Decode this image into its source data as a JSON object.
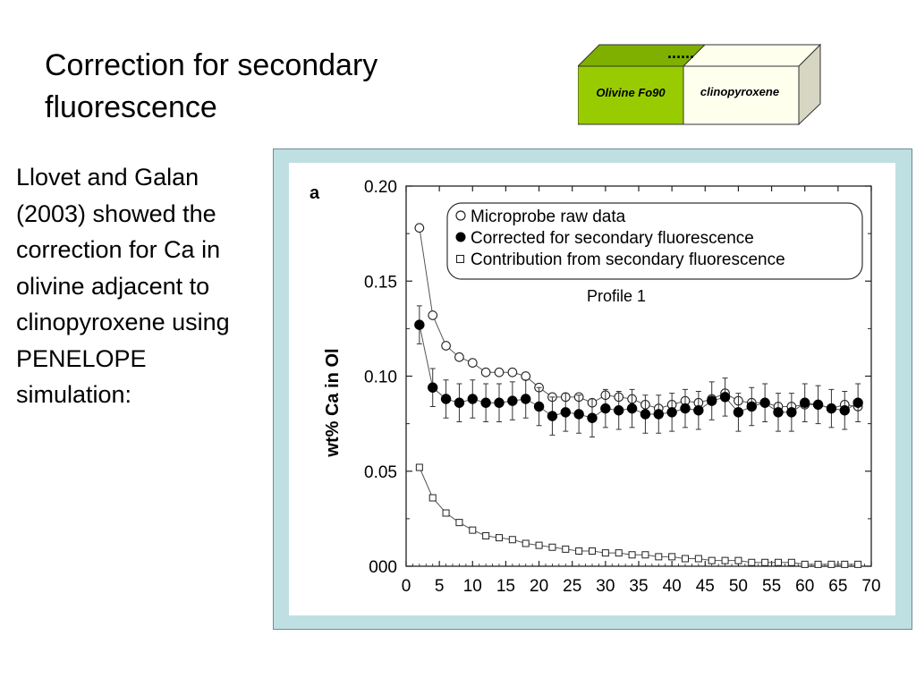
{
  "slide": {
    "title": "Correction for secondary fluorescence",
    "body": "Llovet and Galan (2003) showed the correction for Ca in olivine adjacent to clinopyroxene using PENELOPE simulation:"
  },
  "diagram": {
    "left_label": "Olivine Fo90",
    "right_label": "clinopyroxene",
    "dots": "......",
    "colors": {
      "olivine": "#99cc00",
      "olivine_top": "#7fb000",
      "cpx": "#ffffee",
      "cpx_side": "#d6d6c2"
    }
  },
  "chart_data": {
    "type": "scatter",
    "panel_label": "a",
    "subtitle": "Profile 1",
    "ylabel": "wt% Ca in Ol",
    "xlabel": "",
    "xlim": [
      0,
      70
    ],
    "ylim": [
      0,
      0.2
    ],
    "xticks": [
      "0",
      "5",
      "10",
      "15",
      "20",
      "25",
      "30",
      "35",
      "40",
      "45",
      "50",
      "55",
      "60",
      "65",
      "70"
    ],
    "yticks": [
      "000",
      "0.05",
      "0.10",
      "0.15",
      "0.20"
    ],
    "legend_position": "top-right",
    "series": [
      {
        "name": "Microprobe raw data",
        "marker": "open-circle",
        "x": [
          2,
          4,
          6,
          8,
          10,
          12,
          14,
          16,
          18,
          20,
          22,
          24,
          26,
          28,
          30,
          32,
          34,
          36,
          38,
          40,
          42,
          44,
          46,
          48,
          50,
          52,
          54,
          56,
          58,
          60,
          62,
          64,
          66,
          68
        ],
        "y": [
          0.178,
          0.132,
          0.116,
          0.11,
          0.107,
          0.102,
          0.102,
          0.102,
          0.1,
          0.094,
          0.089,
          0.089,
          0.089,
          0.086,
          0.09,
          0.089,
          0.088,
          0.085,
          0.083,
          0.085,
          0.087,
          0.086,
          0.088,
          0.091,
          0.087,
          0.086,
          0.086,
          0.084,
          0.084,
          0.085,
          0.085,
          0.083,
          0.085,
          0.084
        ]
      },
      {
        "name": "Corrected for secondary fluorescence",
        "marker": "filled-circle",
        "x": [
          2,
          4,
          6,
          8,
          10,
          12,
          14,
          16,
          18,
          20,
          22,
          24,
          26,
          28,
          30,
          32,
          34,
          36,
          38,
          40,
          42,
          44,
          46,
          48,
          50,
          52,
          54,
          56,
          58,
          60,
          62,
          64,
          66,
          68
        ],
        "y": [
          0.127,
          0.094,
          0.088,
          0.086,
          0.088,
          0.086,
          0.086,
          0.087,
          0.088,
          0.084,
          0.079,
          0.081,
          0.08,
          0.078,
          0.083,
          0.082,
          0.083,
          0.08,
          0.08,
          0.081,
          0.083,
          0.082,
          0.087,
          0.089,
          0.081,
          0.084,
          0.086,
          0.081,
          0.081,
          0.086,
          0.085,
          0.083,
          0.082,
          0.086
        ],
        "error": [
          0.01,
          0.01,
          0.01,
          0.01,
          0.01,
          0.01,
          0.01,
          0.01,
          0.01,
          0.01,
          0.01,
          0.01,
          0.01,
          0.01,
          0.01,
          0.01,
          0.01,
          0.01,
          0.01,
          0.01,
          0.01,
          0.01,
          0.01,
          0.01,
          0.01,
          0.01,
          0.01,
          0.01,
          0.01,
          0.01,
          0.01,
          0.01,
          0.01,
          0.01
        ]
      },
      {
        "name": "Contribution from secondary fluorescence",
        "marker": "open-square",
        "x": [
          2,
          4,
          6,
          8,
          10,
          12,
          14,
          16,
          18,
          20,
          22,
          24,
          26,
          28,
          30,
          32,
          34,
          36,
          38,
          40,
          42,
          44,
          46,
          48,
          50,
          52,
          54,
          56,
          58,
          60,
          62,
          64,
          66,
          68
        ],
        "y": [
          0.052,
          0.036,
          0.028,
          0.023,
          0.019,
          0.016,
          0.015,
          0.014,
          0.012,
          0.011,
          0.01,
          0.009,
          0.008,
          0.008,
          0.007,
          0.007,
          0.006,
          0.006,
          0.005,
          0.005,
          0.004,
          0.004,
          0.003,
          0.003,
          0.003,
          0.002,
          0.002,
          0.002,
          0.002,
          0.001,
          0.001,
          0.001,
          0.001,
          0.001
        ]
      }
    ]
  }
}
